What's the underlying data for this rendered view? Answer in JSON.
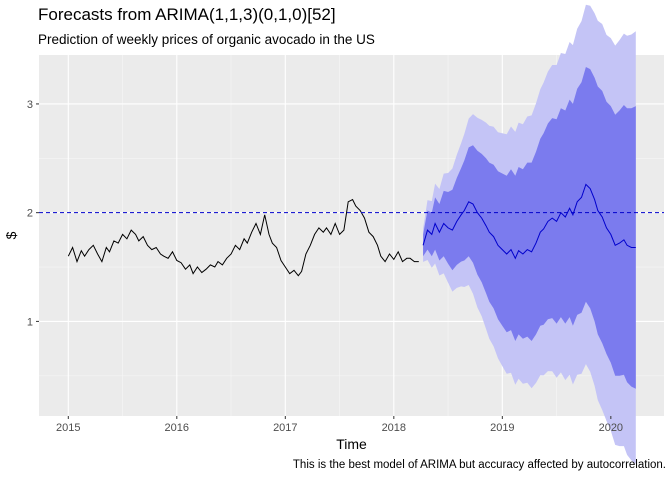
{
  "chart_data": {
    "type": "line",
    "title": "Forecasts from ARIMA(1,1,3)(0,1,0)[52]",
    "subtitle": "Prediction of weekly prices of organic avocado in the US",
    "caption": "This is the best model of ARIMA but accuracy affected by autocorrelation.",
    "xlabel": "Time",
    "ylabel": "$",
    "xlim": [
      2014.73,
      2020.49
    ],
    "ylim": [
      0.13,
      3.45
    ],
    "x_ticks": [
      2015,
      2016,
      2017,
      2018,
      2019,
      2020
    ],
    "x_tick_labels": [
      "2015",
      "2016",
      "2017",
      "2018",
      "2019",
      "2020"
    ],
    "y_ticks": [
      1,
      2,
      3
    ],
    "y_tick_labels": [
      "1",
      "2",
      "3"
    ],
    "grid": true,
    "reference_line": {
      "y": 2.0,
      "style": "dashed",
      "color": "#0000cc"
    },
    "colors": {
      "panel": "#ebebeb",
      "history": "#000000",
      "forecast": "#0000cc",
      "pi80": "#7b7bee",
      "pi95": "#c4c4f6"
    },
    "history": {
      "x": [
        2015.0,
        2015.04,
        2015.08,
        2015.12,
        2015.15,
        2015.19,
        2015.23,
        2015.27,
        2015.31,
        2015.35,
        2015.38,
        2015.42,
        2015.46,
        2015.5,
        2015.54,
        2015.58,
        2015.62,
        2015.65,
        2015.69,
        2015.73,
        2015.77,
        2015.81,
        2015.85,
        2015.88,
        2015.92,
        2015.96,
        2016.0,
        2016.04,
        2016.08,
        2016.12,
        2016.15,
        2016.19,
        2016.23,
        2016.27,
        2016.31,
        2016.35,
        2016.38,
        2016.42,
        2016.46,
        2016.5,
        2016.54,
        2016.58,
        2016.62,
        2016.65,
        2016.69,
        2016.73,
        2016.77,
        2016.81,
        2016.85,
        2016.88,
        2016.92,
        2016.96,
        2017.0,
        2017.04,
        2017.08,
        2017.12,
        2017.15,
        2017.19,
        2017.23,
        2017.27,
        2017.31,
        2017.35,
        2017.38,
        2017.42,
        2017.46,
        2017.5,
        2017.54,
        2017.58,
        2017.62,
        2017.65,
        2017.69,
        2017.73,
        2017.77,
        2017.81,
        2017.85,
        2017.88,
        2017.92,
        2017.96,
        2018.0,
        2018.04,
        2018.08,
        2018.12,
        2018.15,
        2018.19,
        2018.23
      ],
      "y": [
        1.6,
        1.68,
        1.55,
        1.65,
        1.6,
        1.66,
        1.7,
        1.62,
        1.55,
        1.68,
        1.64,
        1.74,
        1.72,
        1.8,
        1.76,
        1.84,
        1.8,
        1.74,
        1.78,
        1.7,
        1.66,
        1.68,
        1.62,
        1.6,
        1.58,
        1.64,
        1.56,
        1.54,
        1.48,
        1.52,
        1.44,
        1.5,
        1.45,
        1.48,
        1.52,
        1.5,
        1.55,
        1.52,
        1.58,
        1.62,
        1.7,
        1.66,
        1.76,
        1.72,
        1.82,
        1.9,
        1.8,
        1.98,
        1.8,
        1.72,
        1.68,
        1.56,
        1.5,
        1.44,
        1.47,
        1.42,
        1.46,
        1.62,
        1.7,
        1.8,
        1.86,
        1.82,
        1.86,
        1.8,
        1.9,
        1.8,
        1.84,
        2.1,
        2.12,
        2.06,
        2.02,
        1.95,
        1.82,
        1.78,
        1.7,
        1.6,
        1.55,
        1.62,
        1.57,
        1.64,
        1.55,
        1.58,
        1.58,
        1.55,
        1.55
      ]
    },
    "forecast": {
      "x": [
        2018.27,
        2018.31,
        2018.35,
        2018.38,
        2018.42,
        2018.46,
        2018.5,
        2018.54,
        2018.58,
        2018.62,
        2018.65,
        2018.69,
        2018.73,
        2018.77,
        2018.81,
        2018.85,
        2018.88,
        2018.92,
        2018.96,
        2019.0,
        2019.04,
        2019.08,
        2019.12,
        2019.15,
        2019.19,
        2019.23,
        2019.27,
        2019.31,
        2019.35,
        2019.38,
        2019.42,
        2019.46,
        2019.5,
        2019.54,
        2019.58,
        2019.62,
        2019.65,
        2019.69,
        2019.73,
        2019.77,
        2019.81,
        2019.85,
        2019.88,
        2019.92,
        2019.96,
        2020.0,
        2020.04,
        2020.08,
        2020.12,
        2020.15,
        2020.19,
        2020.23
      ],
      "mean": [
        1.7,
        1.84,
        1.8,
        1.9,
        1.82,
        1.9,
        1.86,
        1.84,
        1.92,
        1.98,
        2.02,
        2.1,
        2.08,
        2.0,
        1.95,
        1.88,
        1.82,
        1.78,
        1.7,
        1.66,
        1.62,
        1.66,
        1.58,
        1.65,
        1.62,
        1.66,
        1.64,
        1.72,
        1.82,
        1.85,
        1.92,
        1.95,
        1.92,
        2.0,
        1.96,
        2.04,
        1.98,
        2.1,
        2.14,
        2.26,
        2.22,
        2.12,
        2.02,
        1.96,
        1.86,
        1.8,
        1.7,
        1.72,
        1.75,
        1.7,
        1.68,
        1.68
      ],
      "lo80": [
        1.6,
        1.66,
        1.6,
        1.66,
        1.56,
        1.6,
        1.53,
        1.47,
        1.52,
        1.55,
        1.56,
        1.6,
        1.54,
        1.43,
        1.36,
        1.26,
        1.18,
        1.12,
        1.02,
        0.96,
        0.9,
        0.92,
        0.82,
        0.88,
        0.84,
        0.86,
        0.82,
        0.88,
        0.96,
        0.97,
        1.02,
        1.03,
        0.98,
        1.04,
        0.98,
        1.04,
        0.96,
        1.06,
        1.08,
        1.18,
        1.12,
        1.0,
        0.88,
        0.8,
        0.7,
        0.62,
        0.5,
        0.5,
        0.51,
        0.44,
        0.4,
        0.38
      ],
      "hi80": [
        1.8,
        2.02,
        2.0,
        2.14,
        2.08,
        2.2,
        2.19,
        2.21,
        2.32,
        2.41,
        2.48,
        2.6,
        2.62,
        2.57,
        2.54,
        2.5,
        2.46,
        2.44,
        2.38,
        2.36,
        2.34,
        2.4,
        2.34,
        2.42,
        2.4,
        2.46,
        2.46,
        2.56,
        2.68,
        2.73,
        2.82,
        2.87,
        2.86,
        2.96,
        2.94,
        3.04,
        3.0,
        3.14,
        3.2,
        3.34,
        3.32,
        3.24,
        3.16,
        3.12,
        3.02,
        2.98,
        2.9,
        2.94,
        2.99,
        2.96,
        2.96,
        2.98
      ]
    },
    "forecast_intervals_note": "",
    "pi80_offset_scale": 1.0,
    "pi95_extra": []
  }
}
